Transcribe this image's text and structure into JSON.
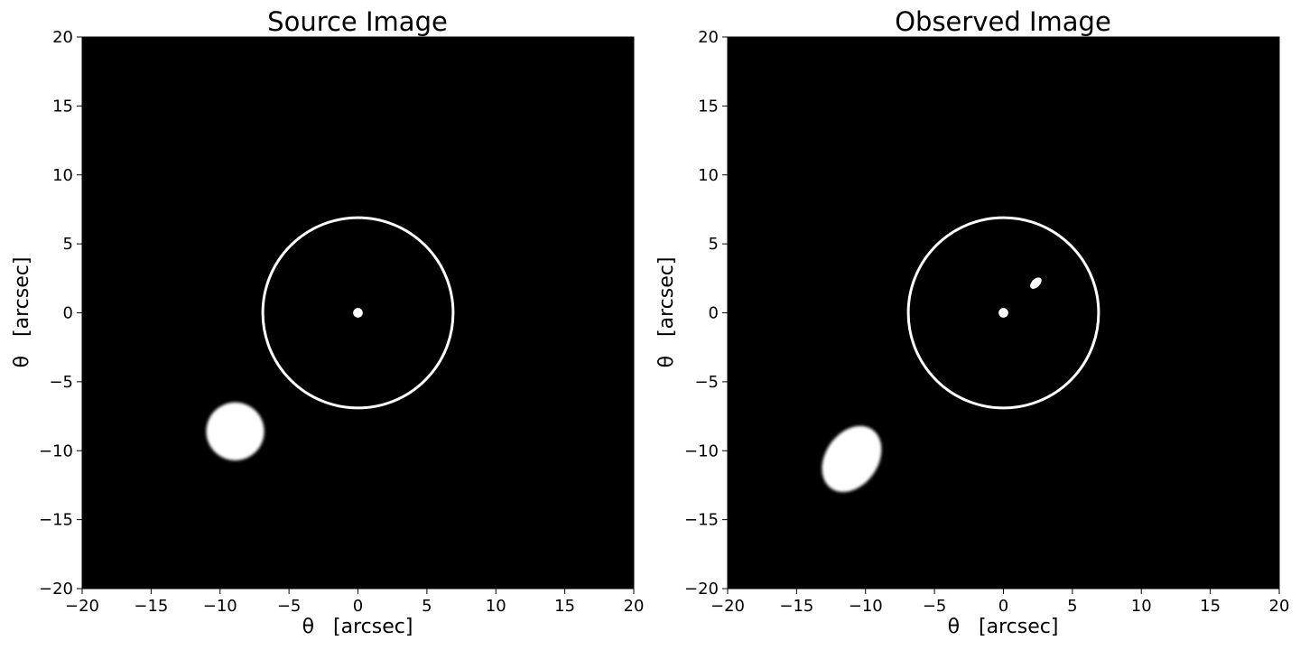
{
  "chart_data": [
    {
      "type": "image",
      "title": "Source Image",
      "xlabel": "θ   [arcsec]",
      "ylabel": "θ   [arcsec]",
      "xlim": [
        -20,
        20
      ],
      "ylim": [
        -20,
        20
      ],
      "xticks": [
        -20,
        -15,
        -10,
        -5,
        0,
        5,
        10,
        15,
        20
      ],
      "yticks": [
        -20,
        -15,
        -10,
        -5,
        0,
        5,
        10,
        15,
        20
      ],
      "background": "#000000",
      "foreground": "#ffffff",
      "circle": {
        "cx": 0,
        "cy": 0,
        "r": 6.9
      },
      "objects": [
        {
          "name": "central-dot",
          "cx": 0,
          "cy": 0,
          "rx": 0.35,
          "ry": 0.35,
          "rotation": 0,
          "blur": 0
        },
        {
          "name": "source-blob",
          "cx": -8.9,
          "cy": -8.6,
          "rx": 2.1,
          "ry": 2.1,
          "rotation": 0,
          "blur": 0.12
        }
      ]
    },
    {
      "type": "image",
      "title": "Observed Image",
      "xlabel": "θ   [arcsec]",
      "ylabel": "θ   [arcsec]",
      "xlim": [
        -20,
        20
      ],
      "ylim": [
        -20,
        20
      ],
      "xticks": [
        -20,
        -15,
        -10,
        -5,
        0,
        5,
        10,
        15,
        20
      ],
      "yticks": [
        -20,
        -15,
        -10,
        -5,
        0,
        5,
        10,
        15,
        20
      ],
      "background": "#000000",
      "foreground": "#ffffff",
      "circle": {
        "cx": 0,
        "cy": 0,
        "r": 6.9
      },
      "objects": [
        {
          "name": "central-dot",
          "cx": 0,
          "cy": 0,
          "rx": 0.35,
          "ry": 0.35,
          "rotation": 0,
          "blur": 0
        },
        {
          "name": "inner-image",
          "cx": 2.35,
          "cy": 2.15,
          "rx": 0.5,
          "ry": 0.3,
          "rotation": -45,
          "blur": 0
        },
        {
          "name": "outer-image",
          "cx": -11.0,
          "cy": -10.6,
          "rx": 2.6,
          "ry": 1.9,
          "rotation": -55,
          "blur": 0.1
        }
      ]
    }
  ]
}
